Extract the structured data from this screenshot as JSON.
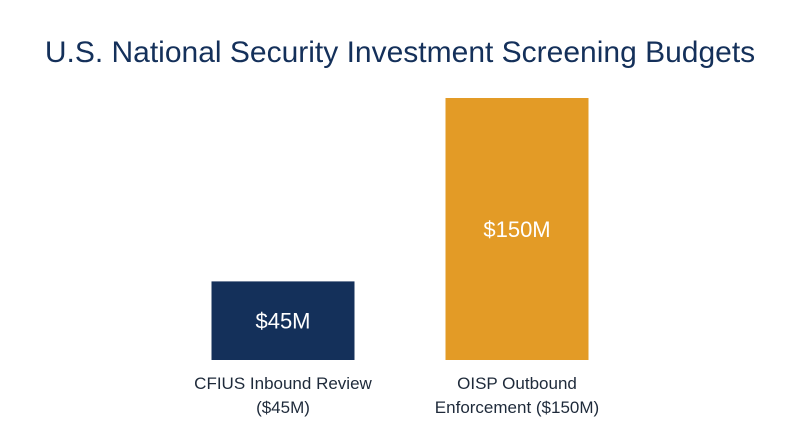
{
  "chart_data": {
    "type": "bar",
    "title": "U.S. National Security Investment Screening Budgets",
    "categories": [
      [
        "CFIUS Inbound Review",
        "($45M)"
      ],
      [
        "OISP Outbound",
        "Enforcement ($150M)"
      ]
    ],
    "values": [
      45,
      150
    ],
    "value_labels": [
      "$45M",
      "$150M"
    ],
    "units": "$M",
    "colors": [
      "#14305a",
      "#e39b26"
    ],
    "ylim": [
      0,
      150
    ],
    "grid": false,
    "xlabel": "",
    "ylabel": ""
  }
}
